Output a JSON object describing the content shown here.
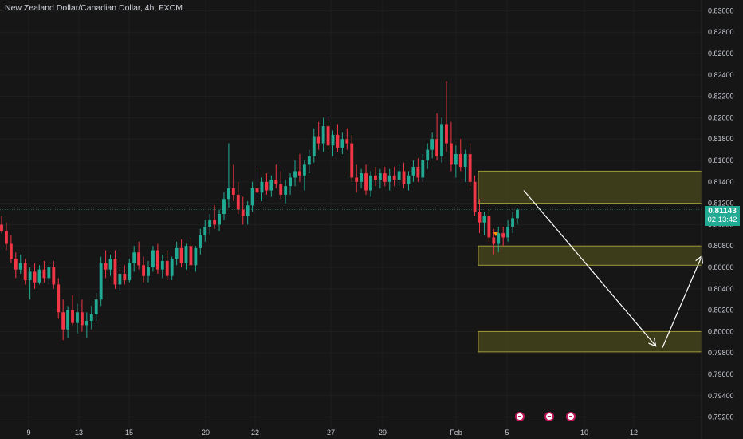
{
  "header": {
    "title": "New Zealand Dollar/Canadian Dollar, 4h, FXCM"
  },
  "price_tag": {
    "price": "0.81143",
    "countdown": "02:13:42"
  },
  "colors": {
    "up": "#22ab94",
    "down": "#f23645",
    "zone_fill": "#4a4a1c",
    "zone_border": "#a09a3a",
    "arrow": "#ffffff",
    "background": "#161616"
  },
  "chart_data": {
    "type": "candlestick",
    "y_axis": {
      "ticks": [
        "0.83000",
        "0.82800",
        "0.82600",
        "0.82400",
        "0.82200",
        "0.82000",
        "0.81800",
        "0.81600",
        "0.81400",
        "0.81200",
        "0.81000",
        "0.80800",
        "0.80600",
        "0.80400",
        "0.80200",
        "0.80000",
        "0.79800",
        "0.79600",
        "0.79400",
        "0.79200"
      ],
      "range": [
        0.791,
        0.831
      ]
    },
    "x_axis": {
      "ticks": [
        "9",
        "13",
        "15",
        "20",
        "22",
        "27",
        "29",
        "Feb",
        "5",
        "10",
        "12"
      ]
    },
    "last_price": 0.81143,
    "events": [
      {
        "name": "calendar-event-1"
      },
      {
        "name": "calendar-event-2"
      },
      {
        "name": "calendar-event-3"
      }
    ],
    "candles": [
      [
        0.81,
        0.8108,
        0.8092,
        0.8094
      ],
      [
        0.8094,
        0.8102,
        0.8076,
        0.8082
      ],
      [
        0.8082,
        0.809,
        0.8064,
        0.8068
      ],
      [
        0.8068,
        0.8074,
        0.805,
        0.8058
      ],
      [
        0.8058,
        0.8072,
        0.8054,
        0.8064
      ],
      [
        0.8064,
        0.8068,
        0.8044,
        0.8048
      ],
      [
        0.8048,
        0.806,
        0.803,
        0.8056
      ],
      [
        0.8056,
        0.8064,
        0.804,
        0.8046
      ],
      [
        0.8046,
        0.8062,
        0.8044,
        0.8058
      ],
      [
        0.8058,
        0.8066,
        0.8046,
        0.805
      ],
      [
        0.805,
        0.8062,
        0.8044,
        0.806
      ],
      [
        0.806,
        0.8066,
        0.804,
        0.8044
      ],
      [
        0.8044,
        0.805,
        0.8012,
        0.8018
      ],
      [
        0.8018,
        0.803,
        0.7992,
        0.8002
      ],
      [
        0.8002,
        0.8024,
        0.7994,
        0.802
      ],
      [
        0.802,
        0.8034,
        0.8006,
        0.8008
      ],
      [
        0.8008,
        0.8026,
        0.7998,
        0.8018
      ],
      [
        0.8018,
        0.803,
        0.8,
        0.8006
      ],
      [
        0.8006,
        0.8018,
        0.7994,
        0.801
      ],
      [
        0.801,
        0.8024,
        0.8002,
        0.8016
      ],
      [
        0.8016,
        0.8036,
        0.801,
        0.803
      ],
      [
        0.803,
        0.807,
        0.8024,
        0.8064
      ],
      [
        0.8064,
        0.8076,
        0.805,
        0.8058
      ],
      [
        0.8058,
        0.8072,
        0.8052,
        0.8068
      ],
      [
        0.8068,
        0.8076,
        0.804,
        0.8044
      ],
      [
        0.8044,
        0.806,
        0.8038,
        0.8054
      ],
      [
        0.8054,
        0.8062,
        0.8044,
        0.8048
      ],
      [
        0.8048,
        0.8068,
        0.8046,
        0.8064
      ],
      [
        0.8064,
        0.808,
        0.8056,
        0.8074
      ],
      [
        0.8074,
        0.8084,
        0.8058,
        0.8062
      ],
      [
        0.8062,
        0.807,
        0.8046,
        0.8052
      ],
      [
        0.8052,
        0.8066,
        0.8046,
        0.806
      ],
      [
        0.806,
        0.808,
        0.8056,
        0.8076
      ],
      [
        0.8076,
        0.8082,
        0.8054,
        0.8058
      ],
      [
        0.8058,
        0.8072,
        0.805,
        0.8066
      ],
      [
        0.8066,
        0.8076,
        0.8048,
        0.8052
      ],
      [
        0.8052,
        0.807,
        0.8048,
        0.8068
      ],
      [
        0.8068,
        0.8084,
        0.8062,
        0.8078
      ],
      [
        0.8078,
        0.8086,
        0.806,
        0.8064
      ],
      [
        0.8064,
        0.8082,
        0.8058,
        0.808
      ],
      [
        0.808,
        0.8088,
        0.806,
        0.8062
      ],
      [
        0.8062,
        0.808,
        0.8056,
        0.8078
      ],
      [
        0.8078,
        0.8096,
        0.8072,
        0.809
      ],
      [
        0.809,
        0.8104,
        0.8084,
        0.8098
      ],
      [
        0.8098,
        0.811,
        0.809,
        0.8104
      ],
      [
        0.8104,
        0.8118,
        0.8096,
        0.81
      ],
      [
        0.81,
        0.8114,
        0.8094,
        0.811
      ],
      [
        0.811,
        0.813,
        0.8104,
        0.8124
      ],
      [
        0.8124,
        0.8176,
        0.8116,
        0.8134
      ],
      [
        0.8134,
        0.8156,
        0.8122,
        0.8128
      ],
      [
        0.8128,
        0.814,
        0.811,
        0.8114
      ],
      [
        0.8114,
        0.8126,
        0.81,
        0.8108
      ],
      [
        0.8108,
        0.8122,
        0.81,
        0.8118
      ],
      [
        0.8118,
        0.814,
        0.8112,
        0.8134
      ],
      [
        0.8134,
        0.815,
        0.8124,
        0.813
      ],
      [
        0.813,
        0.8144,
        0.8122,
        0.814
      ],
      [
        0.814,
        0.8148,
        0.8128,
        0.8132
      ],
      [
        0.8132,
        0.8146,
        0.8126,
        0.8142
      ],
      [
        0.8142,
        0.8156,
        0.8134,
        0.8138
      ],
      [
        0.8138,
        0.815,
        0.8124,
        0.8128
      ],
      [
        0.8128,
        0.8142,
        0.812,
        0.8136
      ],
      [
        0.8136,
        0.8148,
        0.8128,
        0.8144
      ],
      [
        0.8144,
        0.816,
        0.8136,
        0.815
      ],
      [
        0.815,
        0.8166,
        0.814,
        0.8146
      ],
      [
        0.8146,
        0.816,
        0.8132,
        0.8156
      ],
      [
        0.8156,
        0.817,
        0.8148,
        0.8164
      ],
      [
        0.8164,
        0.819,
        0.8158,
        0.8182
      ],
      [
        0.8182,
        0.8196,
        0.817,
        0.8176
      ],
      [
        0.8176,
        0.82,
        0.8168,
        0.8192
      ],
      [
        0.8192,
        0.8202,
        0.817,
        0.8174
      ],
      [
        0.8174,
        0.8188,
        0.8164,
        0.8184
      ],
      [
        0.8184,
        0.8194,
        0.8168,
        0.8172
      ],
      [
        0.8172,
        0.8186,
        0.8166,
        0.818
      ],
      [
        0.818,
        0.819,
        0.817,
        0.8176
      ],
      [
        0.8176,
        0.8184,
        0.814,
        0.8144
      ],
      [
        0.8144,
        0.8156,
        0.813,
        0.814
      ],
      [
        0.814,
        0.8152,
        0.8134,
        0.8148
      ],
      [
        0.8148,
        0.8156,
        0.8128,
        0.8132
      ],
      [
        0.8132,
        0.815,
        0.8126,
        0.8146
      ],
      [
        0.8146,
        0.8154,
        0.8136,
        0.8142
      ],
      [
        0.8142,
        0.8152,
        0.8134,
        0.8148
      ],
      [
        0.8148,
        0.8154,
        0.8136,
        0.814
      ],
      [
        0.814,
        0.8152,
        0.8132,
        0.8146
      ],
      [
        0.8146,
        0.8154,
        0.8136,
        0.8142
      ],
      [
        0.8142,
        0.8156,
        0.8136,
        0.815
      ],
      [
        0.815,
        0.8158,
        0.8134,
        0.8138
      ],
      [
        0.8138,
        0.815,
        0.8132,
        0.8146
      ],
      [
        0.8146,
        0.816,
        0.814,
        0.8154
      ],
      [
        0.8154,
        0.8162,
        0.814,
        0.8144
      ],
      [
        0.8144,
        0.8166,
        0.814,
        0.816
      ],
      [
        0.816,
        0.8176,
        0.8152,
        0.817
      ],
      [
        0.817,
        0.8186,
        0.8162,
        0.818
      ],
      [
        0.818,
        0.8204,
        0.816,
        0.8164
      ],
      [
        0.8164,
        0.82,
        0.8158,
        0.8194
      ],
      [
        0.8194,
        0.8234,
        0.8168,
        0.8176
      ],
      [
        0.8176,
        0.8196,
        0.815,
        0.8156
      ],
      [
        0.8156,
        0.8174,
        0.8144,
        0.8166
      ],
      [
        0.8166,
        0.818,
        0.815,
        0.8154
      ],
      [
        0.8154,
        0.817,
        0.814,
        0.8166
      ],
      [
        0.8166,
        0.8176,
        0.8136,
        0.814
      ],
      [
        0.814,
        0.8146,
        0.8108,
        0.8112
      ],
      [
        0.8112,
        0.8124,
        0.8092,
        0.8102
      ],
      [
        0.8102,
        0.8112,
        0.809,
        0.8108
      ],
      [
        0.8108,
        0.8114,
        0.8084,
        0.8088
      ],
      [
        0.8088,
        0.8096,
        0.8072,
        0.8082
      ],
      [
        0.8082,
        0.8098,
        0.8074,
        0.8092
      ],
      [
        0.8092,
        0.8098,
        0.808,
        0.8088
      ],
      [
        0.8088,
        0.8104,
        0.8084,
        0.8098
      ],
      [
        0.8098,
        0.8112,
        0.8092,
        0.8106
      ],
      [
        0.8106,
        0.8116,
        0.81,
        0.8114
      ]
    ],
    "zones": [
      {
        "name": "upper-supply-zone",
        "top": 0.815,
        "bottom": 0.812
      },
      {
        "name": "middle-demand-zone",
        "top": 0.808,
        "bottom": 0.8062
      },
      {
        "name": "lower-demand-zone",
        "top": 0.8,
        "bottom": 0.7981
      }
    ],
    "projection_arrows": [
      {
        "name": "down-projection-arrow",
        "from": {
          "x": "5",
          "y": 0.8132
        },
        "to": {
          "x": "12",
          "y": 0.7987
        }
      },
      {
        "name": "up-projection-arrow",
        "from": {
          "x": "12",
          "y": 0.7985
        },
        "to": {
          "x": "12",
          "y": 0.807
        }
      }
    ]
  }
}
